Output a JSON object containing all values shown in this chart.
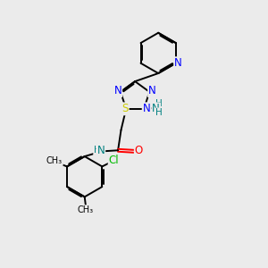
{
  "bg_color": "#ebebeb",
  "atom_colors": {
    "N": "#0000ff",
    "O": "#ff0000",
    "S": "#cccc00",
    "Cl": "#00bb00",
    "C": "#000000",
    "H": "#000000",
    "NH": "#008080"
  },
  "bond_color": "#000000",
  "figsize": [
    3.0,
    3.0
  ],
  "dpi": 100
}
